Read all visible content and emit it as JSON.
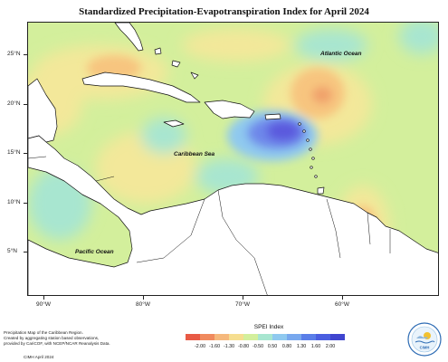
{
  "title": "Standardized Precipitation-Evapotranspiration Index for April 2024",
  "map": {
    "ocean_labels": {
      "atlantic": "Atlantic Ocean",
      "caribbean": "Caribbean Sea",
      "pacific": "Pacific Ocean"
    },
    "lat_labels": [
      "25°N",
      "20°N",
      "15°N",
      "10°N",
      "5°N"
    ],
    "lon_labels": [
      "90°W",
      "80°W",
      "70°W",
      "60°W"
    ],
    "colors": {
      "land": "#ffffff",
      "near_normal": "#d3ef9c",
      "dry_mild": "#f3e89a",
      "dry_moderate": "#f7c57f",
      "dry_strong": "#f0a06a",
      "wet_mild": "#a8e6d0",
      "wet_moderate": "#8fc9ef",
      "wet_strong": "#6e88ea",
      "wet_extreme": "#5a58dd"
    }
  },
  "footnote": {
    "line1": "Precipitation Map of the Caribbean Region.",
    "line2": "Created by aggregating station based observations,",
    "line3": "provided by CariCOF, with NCEP/NCAR Reanalysis Data.",
    "credit": "CIMH April 2024"
  },
  "legend": {
    "title": "SPEI Index",
    "ticks": [
      "-2.00",
      "-1.60",
      "-1.30",
      "-0.80",
      "-0.50",
      "0.50",
      "0.80",
      "1.30",
      "1.60",
      "2.00"
    ],
    "colors": [
      "#e85a45",
      "#f08a5e",
      "#f5b87c",
      "#f6de90",
      "#d3ef9c",
      "#a8e6d0",
      "#8fc9ef",
      "#78a8ee",
      "#5a7ee8",
      "#4a5ee0",
      "#3f45cf"
    ]
  },
  "logo": {
    "text": "CIMH",
    "icon": "cimh-logo-icon"
  }
}
